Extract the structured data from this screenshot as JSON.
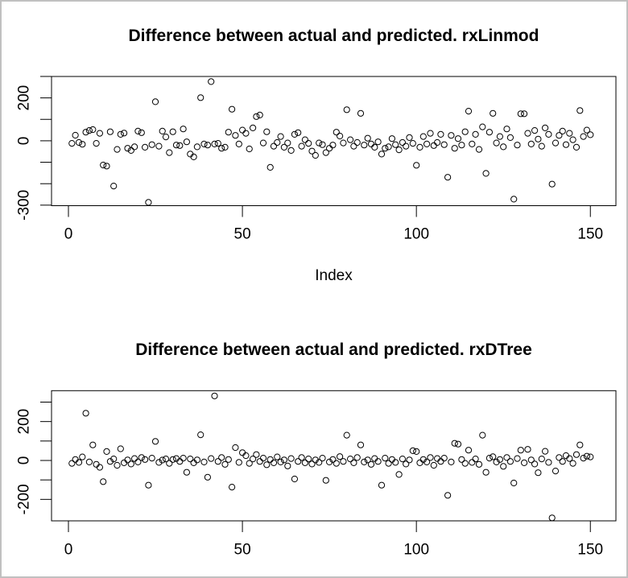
{
  "window": {
    "background_color": "#ffffff",
    "frame_color": "#c0c0c0",
    "point_color": "#000000",
    "axis_color": "#000000"
  },
  "chart_data": [
    {
      "type": "scatter",
      "title": "Difference between actual and predicted. rxLinmod",
      "xlabel": "Index",
      "ylabel": "",
      "marker": "open-circle",
      "legend": "none",
      "grid": false,
      "xlim": [
        -5,
        156
      ],
      "ylim": [
        -302,
        300
      ],
      "x_ticks": [
        {
          "value": 0,
          "label": "0"
        },
        {
          "value": 50,
          "label": "50"
        },
        {
          "value": 100,
          "label": "100"
        },
        {
          "value": 150,
          "label": "150"
        }
      ],
      "y_ticks": [
        {
          "value": 300,
          "label": ""
        },
        {
          "value": 200,
          "label": "200"
        },
        {
          "value": 100,
          "label": ""
        },
        {
          "value": 0,
          "label": "0"
        },
        {
          "value": -100,
          "label": ""
        },
        {
          "value": -200,
          "label": ""
        },
        {
          "value": -300,
          "label": "-300"
        }
      ],
      "x_start": 1,
      "x_step": 1,
      "y": [
        -12,
        26,
        -8,
        -16,
        40,
        48,
        52,
        -12,
        35,
        -113,
        -118,
        42,
        -211,
        -40,
        30,
        36,
        -35,
        -45,
        -28,
        45,
        38,
        -30,
        -287,
        -18,
        182,
        -25,
        45,
        18,
        -55,
        42,
        -20,
        -22,
        55,
        -5,
        -62,
        -75,
        -28,
        201,
        -15,
        -20,
        276,
        -15,
        -12,
        -35,
        -30,
        40,
        147,
        25,
        -15,
        50,
        35,
        -38,
        60,
        113,
        120,
        -10,
        42,
        -124,
        -25,
        -8,
        20,
        -30,
        -10,
        -45,
        30,
        38,
        -25,
        5,
        -12,
        -48,
        -68,
        -10,
        -18,
        -55,
        -35,
        -20,
        40,
        22,
        -10,
        145,
        5,
        -25,
        -8,
        128,
        -20,
        12,
        -15,
        -30,
        -5,
        -62,
        -35,
        -28,
        10,
        -18,
        -42,
        -8,
        -25,
        15,
        -12,
        -114,
        -30,
        20,
        -15,
        35,
        -22,
        -8,
        30,
        -18,
        -170,
        25,
        -35,
        10,
        -20,
        42,
        138,
        -15,
        30,
        -40,
        65,
        -152,
        40,
        128,
        -10,
        20,
        -28,
        55,
        15,
        -272,
        -20,
        126,
        126,
        35,
        -15,
        48,
        8,
        -25,
        60,
        30,
        -202,
        -10,
        25,
        45,
        -18,
        35,
        5,
        -30,
        141,
        20,
        50,
        28
      ]
    },
    {
      "type": "scatter",
      "title": "Difference between actual and predicted. rxDTree",
      "xlabel": "",
      "ylabel": "",
      "marker": "open-circle",
      "legend": "none",
      "grid": false,
      "xlim": [
        -5,
        156
      ],
      "ylim": [
        -310,
        359
      ],
      "x_ticks": [
        {
          "value": 0,
          "label": "0"
        },
        {
          "value": 50,
          "label": "50"
        },
        {
          "value": 100,
          "label": "100"
        },
        {
          "value": 150,
          "label": "150"
        }
      ],
      "y_ticks": [
        {
          "value": 300,
          "label": ""
        },
        {
          "value": 200,
          "label": "200"
        },
        {
          "value": 100,
          "label": ""
        },
        {
          "value": 0,
          "label": "0"
        },
        {
          "value": -100,
          "label": ""
        },
        {
          "value": -200,
          "label": "-200"
        }
      ],
      "x_start": 1,
      "x_step": 1,
      "y": [
        -15,
        5,
        -10,
        18,
        243,
        -8,
        80,
        -20,
        -35,
        -109,
        46,
        -5,
        8,
        -25,
        60,
        -12,
        3,
        -18,
        10,
        -8,
        15,
        5,
        -127,
        12,
        98,
        -10,
        2,
        8,
        -15,
        5,
        10,
        -5,
        12,
        -61,
        8,
        -12,
        3,
        132,
        -8,
        -86,
        10,
        332,
        -5,
        15,
        -20,
        5,
        -137,
        66,
        -10,
        40,
        25,
        -15,
        8,
        30,
        -5,
        12,
        -22,
        5,
        -12,
        18,
        -8,
        3,
        -28,
        10,
        -95,
        -5,
        15,
        -12,
        8,
        -18,
        3,
        -10,
        12,
        -102,
        -8,
        5,
        -15,
        20,
        -5,
        130,
        8,
        -12,
        15,
        80,
        -8,
        3,
        -20,
        10,
        -5,
        -127,
        12,
        -15,
        5,
        -10,
        -72,
        8,
        -18,
        3,
        50,
        46,
        -12,
        5,
        -8,
        15,
        -25,
        10,
        -5,
        12,
        -179,
        -8,
        88,
        84,
        5,
        -15,
        53,
        -10,
        8,
        -20,
        130,
        -61,
        12,
        19,
        -8,
        5,
        -30,
        15,
        -5,
        -116,
        10,
        53,
        -12,
        57,
        3,
        -18,
        -63,
        8,
        47,
        -10,
        -295,
        -54,
        15,
        -5,
        25,
        10,
        -15,
        30,
        80,
        12,
        22,
        18
      ]
    }
  ]
}
